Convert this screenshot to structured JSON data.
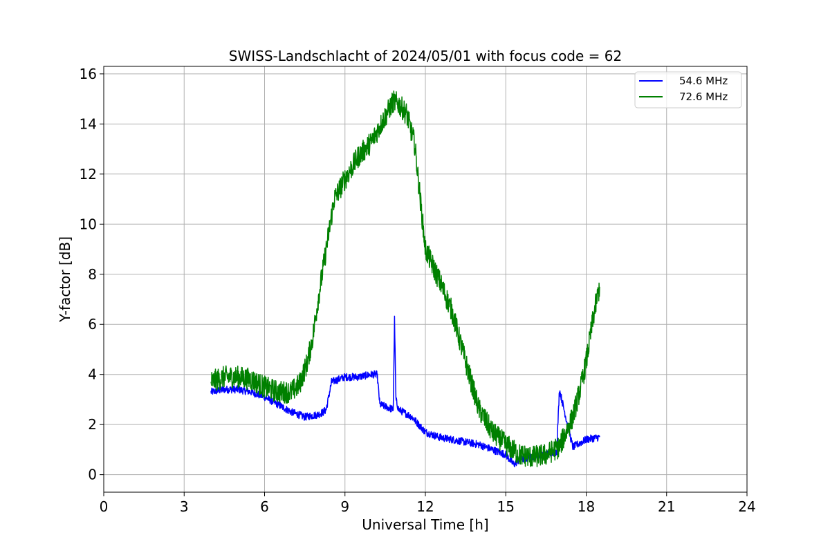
{
  "chart_data": {
    "type": "line",
    "title": "SWISS-Landschlacht of 2024/05/01 with focus code = 62",
    "xlabel": "Universal Time [h]",
    "ylabel": "Y-factor [dB]",
    "xlim": [
      0,
      24
    ],
    "ylim": [
      -0.7,
      16.3
    ],
    "xticks": [
      0,
      3,
      6,
      9,
      12,
      15,
      18,
      21,
      24
    ],
    "yticks": [
      0,
      2,
      4,
      6,
      8,
      10,
      12,
      14,
      16
    ],
    "grid": true,
    "legend_position": "top-right",
    "series": [
      {
        "name": "54.6 MHz",
        "color": "#0000ff",
        "noise": 0.15,
        "x": [
          4.0,
          4.5,
          5.0,
          5.5,
          6.0,
          6.5,
          7.0,
          7.5,
          8.0,
          8.2,
          8.3,
          8.5,
          9.0,
          9.5,
          10.0,
          10.2,
          10.3,
          10.8,
          10.85,
          10.9,
          11.0,
          11.5,
          12.0,
          12.5,
          13.0,
          13.5,
          14.0,
          14.5,
          15.0,
          15.3,
          15.5,
          16.0,
          16.5,
          16.9,
          17.0,
          17.5,
          18.0,
          18.5
        ],
        "y": [
          3.3,
          3.4,
          3.4,
          3.3,
          3.1,
          2.8,
          2.5,
          2.3,
          2.4,
          2.5,
          2.6,
          3.7,
          3.9,
          3.9,
          4.0,
          4.0,
          2.8,
          2.6,
          6.2,
          3.0,
          2.6,
          2.3,
          1.7,
          1.5,
          1.4,
          1.3,
          1.2,
          1.0,
          0.8,
          0.4,
          0.6,
          0.7,
          0.8,
          0.9,
          3.4,
          1.1,
          1.4,
          1.5
        ]
      },
      {
        "name": "72.6 MHz",
        "color": "#008000",
        "noise": 0.45,
        "x": [
          4.0,
          4.5,
          5.0,
          5.5,
          6.0,
          6.5,
          7.0,
          7.3,
          7.6,
          7.8,
          8.0,
          8.3,
          8.6,
          9.0,
          9.5,
          10.0,
          10.5,
          10.8,
          11.0,
          11.3,
          11.6,
          12.0,
          12.5,
          13.0,
          13.5,
          14.0,
          14.5,
          15.0,
          15.5,
          16.0,
          16.5,
          17.0,
          17.5,
          17.8,
          18.0,
          18.3,
          18.5
        ],
        "y": [
          3.7,
          3.9,
          3.9,
          3.8,
          3.5,
          3.3,
          3.3,
          3.6,
          4.5,
          5.5,
          7.0,
          9.0,
          11.0,
          11.8,
          12.7,
          13.3,
          14.3,
          14.9,
          14.8,
          14.4,
          13.2,
          9.0,
          7.8,
          6.5,
          4.5,
          2.6,
          1.7,
          1.2,
          0.8,
          0.7,
          0.8,
          1.1,
          2.3,
          3.5,
          4.5,
          6.5,
          7.5
        ]
      }
    ]
  }
}
